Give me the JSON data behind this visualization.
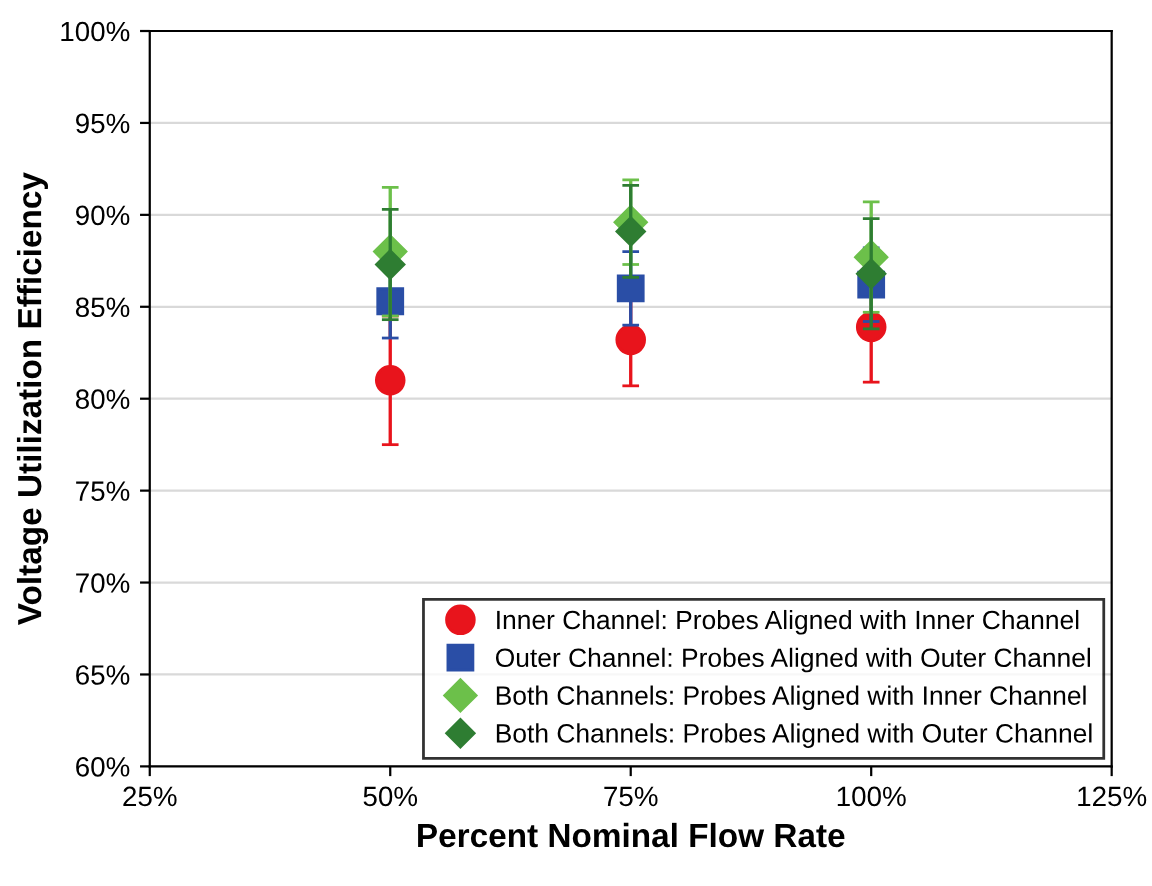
{
  "chart_data": {
    "type": "scatter",
    "xlabel": "Percent Nominal Flow Rate",
    "ylabel": "Voltage Utilization Efficiency",
    "x": [
      50,
      75,
      100
    ],
    "xlim": [
      25,
      125
    ],
    "xticks": [
      {
        "value": 25,
        "label": "25%"
      },
      {
        "value": 50,
        "label": "50%"
      },
      {
        "value": 75,
        "label": "75%"
      },
      {
        "value": 100,
        "label": "100%"
      },
      {
        "value": 125,
        "label": "125%"
      }
    ],
    "ylim": [
      60,
      100
    ],
    "yticks": [
      {
        "value": 60,
        "label": "60%"
      },
      {
        "value": 65,
        "label": "65%"
      },
      {
        "value": 70,
        "label": "70%"
      },
      {
        "value": 75,
        "label": "75%"
      },
      {
        "value": 80,
        "label": "80%"
      },
      {
        "value": 85,
        "label": "85%"
      },
      {
        "value": 90,
        "label": "90%"
      },
      {
        "value": 95,
        "label": "95%"
      },
      {
        "value": 100,
        "label": "100%"
      }
    ],
    "grid": "y",
    "legend": "bottom right",
    "series": [
      {
        "name": "Inner Channel: Probes Aligned with Inner Channel",
        "color": "#e8141c",
        "marker": "circle",
        "values": [
          81.0,
          83.2,
          83.9
        ],
        "errors": [
          3.5,
          2.5,
          3.0
        ]
      },
      {
        "name": "Outer Channel: Probes Aligned with Outer Channel",
        "color": "#2a4ea6",
        "marker": "square",
        "values": [
          85.3,
          86.0,
          86.2
        ],
        "errors": [
          2.0,
          2.0,
          2.0
        ]
      },
      {
        "name": "Both Channels: Probes Aligned with Inner Channel",
        "color": "#6cc04a",
        "marker": "diamond",
        "values": [
          88.0,
          89.6,
          87.7
        ],
        "errors": [
          3.5,
          2.3,
          3.0
        ]
      },
      {
        "name": "Both Channels: Probes Aligned with Outer Channel",
        "color": "#2e7d32",
        "marker": "diamond",
        "values": [
          87.3,
          89.1,
          86.8
        ],
        "errors": [
          3.0,
          2.5,
          3.0
        ]
      }
    ]
  }
}
